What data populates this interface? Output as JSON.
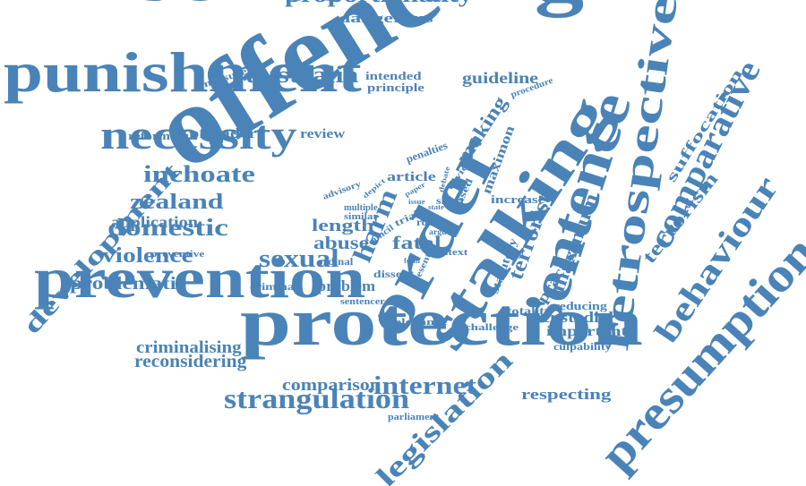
{
  "colors": {
    "word": "#4a83b7",
    "background": "#ffffff"
  },
  "words": [
    {
      "id": "sentencing",
      "text": "sentencing"
    },
    {
      "id": "punishment",
      "text": "punishment"
    },
    {
      "id": "offence",
      "text": "offence"
    },
    {
      "id": "order",
      "text": "order"
    },
    {
      "id": "stalking",
      "text": "stalking"
    },
    {
      "id": "sentence",
      "text": "sentence"
    },
    {
      "id": "retrospective",
      "text": "retrospective"
    },
    {
      "id": "comparative",
      "text": "comparative"
    },
    {
      "id": "behaviour",
      "text": "behaviour"
    },
    {
      "id": "presumption",
      "text": "presumption"
    },
    {
      "id": "prevention",
      "text": "prevention"
    },
    {
      "id": "protection",
      "text": "protection"
    },
    {
      "id": "necessity",
      "text": "necessity"
    },
    {
      "id": "proportionality",
      "text": "proportionality"
    },
    {
      "id": "dangerous",
      "text": "dangerous"
    },
    {
      "id": "australia",
      "text": "australia"
    },
    {
      "id": "measure",
      "text": "measure"
    },
    {
      "id": "intended",
      "text": "intended"
    },
    {
      "id": "principle",
      "text": "principle"
    },
    {
      "id": "guideline",
      "text": "guideline"
    },
    {
      "id": "procedure",
      "text": "procedure"
    },
    {
      "id": "reforming",
      "text": "reforming"
    },
    {
      "id": "offender",
      "text": "offender"
    },
    {
      "id": "review",
      "text": "review"
    },
    {
      "id": "making",
      "text": "making"
    },
    {
      "id": "maximon",
      "text": "maximon"
    },
    {
      "id": "penalties",
      "text": "penalties"
    },
    {
      "id": "inchoate",
      "text": "inchoate"
    },
    {
      "id": "zealand",
      "text": "zealand"
    },
    {
      "id": "development",
      "text": "development"
    },
    {
      "id": "application",
      "text": "application"
    },
    {
      "id": "domestic",
      "text": "domestic"
    },
    {
      "id": "preventive",
      "text": "preventive"
    },
    {
      "id": "violence",
      "text": "violence"
    },
    {
      "id": "problematic",
      "text": "problematic"
    },
    {
      "id": "advisory",
      "text": "advisory"
    },
    {
      "id": "article",
      "text": "article"
    },
    {
      "id": "multiple",
      "text": "multiple"
    },
    {
      "id": "similar",
      "text": "similar"
    },
    {
      "id": "harm",
      "text": "harm"
    },
    {
      "id": "length",
      "text": "length"
    },
    {
      "id": "abuse",
      "text": "abuse"
    },
    {
      "id": "fatal",
      "text": "fatal"
    },
    {
      "id": "ordinal",
      "text": "ordinal"
    },
    {
      "id": "sexual",
      "text": "sexual"
    },
    {
      "id": "dissent",
      "text": "dissent"
    },
    {
      "id": "criminal",
      "text": "criminal"
    },
    {
      "id": "problem",
      "text": "problem"
    },
    {
      "id": "sentencer",
      "text": "sentencer"
    },
    {
      "id": "council",
      "text": "council"
    },
    {
      "id": "role",
      "text": "role"
    },
    {
      "id": "divide",
      "text": "divide"
    },
    {
      "id": "short",
      "text": "short"
    },
    {
      "id": "based",
      "text": "based"
    },
    {
      "id": "increase",
      "text": "increase"
    },
    {
      "id": "context",
      "text": "context"
    },
    {
      "id": "present",
      "text": "present"
    },
    {
      "id": "terrorist",
      "text": "terrorist"
    },
    {
      "id": "statutory",
      "text": "statutory"
    },
    {
      "id": "maximum",
      "text": "maximum"
    },
    {
      "id": "practice",
      "text": "practice"
    },
    {
      "id": "terrorism",
      "text": "terrorism"
    },
    {
      "id": "suffocation",
      "text": "suffocation"
    },
    {
      "id": "reducing",
      "text": "reducing"
    },
    {
      "id": "custodial",
      "text": "custodial"
    },
    {
      "id": "important",
      "text": "important"
    },
    {
      "id": "culpability",
      "text": "culpability"
    },
    {
      "id": "totality",
      "text": "totality"
    },
    {
      "id": "challenge",
      "text": "challenge"
    },
    {
      "id": "relevance",
      "text": "relevance"
    },
    {
      "id": "criminalising",
      "text": "criminalising"
    },
    {
      "id": "reconsidering",
      "text": "reconsidering"
    },
    {
      "id": "comparison",
      "text": "comparison"
    },
    {
      "id": "internet",
      "text": "internet"
    },
    {
      "id": "strangulation",
      "text": "strangulation"
    },
    {
      "id": "parliament",
      "text": "parliament"
    },
    {
      "id": "legislation",
      "text": "legislation"
    },
    {
      "id": "respecting",
      "text": "respecting"
    },
    {
      "id": "debate",
      "text": "debate"
    },
    {
      "id": "paper",
      "text": "paper"
    },
    {
      "id": "issue",
      "text": "issue"
    },
    {
      "id": "state",
      "text": "state"
    },
    {
      "id": "argue",
      "text": "argue"
    },
    {
      "id": "trial",
      "text": "trial"
    },
    {
      "id": "form",
      "text": "form"
    },
    {
      "id": "aim",
      "text": "aim"
    },
    {
      "id": "depict",
      "text": "depict"
    }
  ]
}
